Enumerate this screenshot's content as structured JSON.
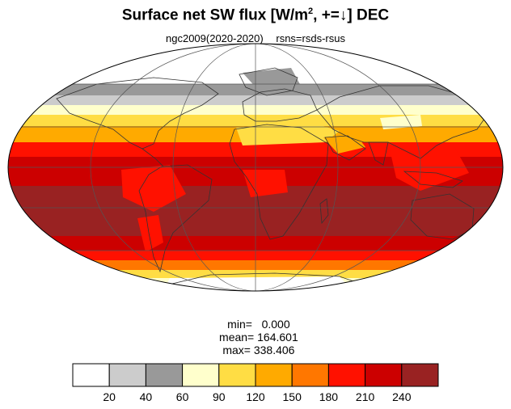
{
  "title": {
    "main": "Surface net SW flux [W/m",
    "sup": "2",
    "rest": ", +=↓]  DEC"
  },
  "subtitle": {
    "left": "ngc2009(2020-2020)",
    "right": "rsns=rsds-rsus"
  },
  "stats": {
    "min": "min=   0.000",
    "mean": "mean= 164.601",
    "max": "max= 338.406"
  },
  "map": {
    "projection": "Mollweide",
    "land_outline": "#333333",
    "grid_color": "#555555"
  },
  "colorbar": {
    "colors": [
      "#ffffff",
      "#cccccc",
      "#999999",
      "#ffffcc",
      "#ffdd44",
      "#ffaa00",
      "#ff7700",
      "#ff1100",
      "#cc0000",
      "#992222"
    ],
    "labels": [
      "20",
      "40",
      "60",
      "90",
      "120",
      "150",
      "180",
      "210",
      "240"
    ]
  }
}
